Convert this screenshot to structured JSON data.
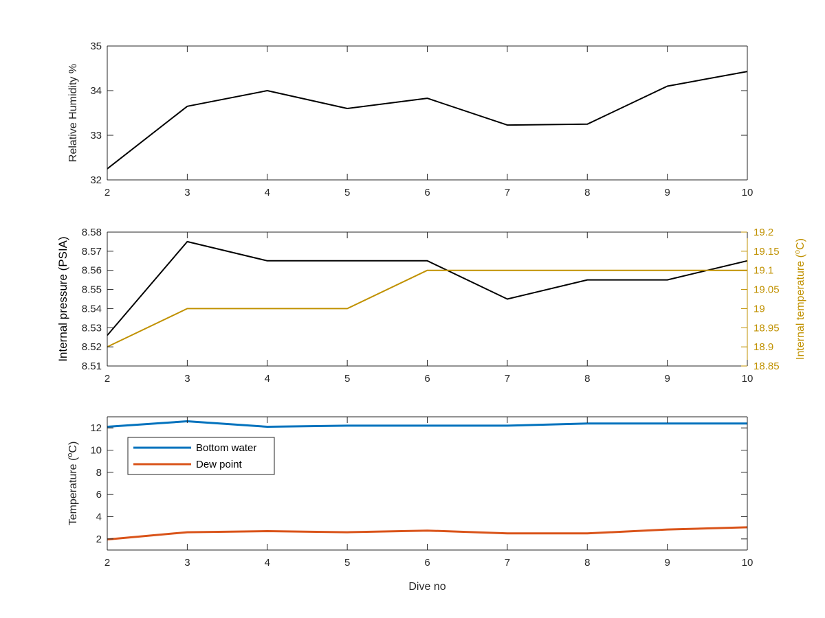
{
  "chart_data": [
    {
      "type": "line",
      "x": [
        2,
        3,
        4,
        5,
        6,
        7,
        8,
        9,
        10
      ],
      "series": [
        {
          "values": [
            32.25,
            33.65,
            34.0,
            33.6,
            33.83,
            33.23,
            33.25,
            34.1,
            34.43
          ],
          "color": "#000000"
        }
      ],
      "xlabel": "",
      "ylabel": "Relative Humidity %",
      "xlim": [
        2,
        10
      ],
      "ylim": [
        32,
        35
      ],
      "xticks": [
        "2",
        "3",
        "4",
        "5",
        "6",
        "7",
        "8",
        "9",
        "10"
      ],
      "yticks": [
        "32",
        "33",
        "34",
        "35"
      ],
      "grid": false
    },
    {
      "type": "line",
      "x": [
        2,
        3,
        4,
        5,
        6,
        7,
        8,
        9,
        10
      ],
      "series": [
        {
          "values": [
            8.526,
            8.575,
            8.565,
            8.565,
            8.565,
            8.545,
            8.555,
            8.555,
            8.565
          ],
          "color": "#000000",
          "axis": "left"
        },
        {
          "values": [
            18.9,
            19.0,
            19.0,
            19.0,
            19.1,
            19.1,
            19.1,
            19.1,
            19.1
          ],
          "color": "#C09100",
          "axis": "right"
        }
      ],
      "xlabel": "",
      "ylabel": "Internal pressure (PSIA)",
      "ylabel_right": "Internal temperature (°C)",
      "xlim": [
        2,
        10
      ],
      "ylim": [
        8.51,
        8.58
      ],
      "ylim_right": [
        18.85,
        19.2
      ],
      "xticks": [
        "2",
        "3",
        "4",
        "5",
        "6",
        "7",
        "8",
        "9",
        "10"
      ],
      "yticks": [
        "8.51",
        "8.52",
        "8.53",
        "8.54",
        "8.55",
        "8.56",
        "8.57",
        "8.58"
      ],
      "yticks_right": [
        "18.85",
        "18.9",
        "18.95",
        "19",
        "19.05",
        "19.1",
        "19.15",
        "19.2"
      ],
      "grid": false
    },
    {
      "type": "line",
      "x": [
        2,
        3,
        4,
        5,
        6,
        7,
        8,
        9,
        10
      ],
      "series": [
        {
          "name": "Bottom water",
          "values": [
            12.1,
            12.6,
            12.1,
            12.2,
            12.2,
            12.2,
            12.4,
            12.4,
            12.4
          ],
          "color": "#0072BD"
        },
        {
          "name": "Dew point",
          "values": [
            1.95,
            2.6,
            2.7,
            2.6,
            2.75,
            2.5,
            2.5,
            2.85,
            3.05
          ],
          "color": "#D95319"
        }
      ],
      "xlabel": "Dive no",
      "ylabel": "Temperature (°C)",
      "xlim": [
        2,
        10
      ],
      "ylim": [
        1,
        13
      ],
      "xticks": [
        "2",
        "3",
        "4",
        "5",
        "6",
        "7",
        "8",
        "9",
        "10"
      ],
      "yticks": [
        "2",
        "4",
        "6",
        "8",
        "10",
        "12"
      ],
      "legend": "top-left",
      "grid": false
    }
  ]
}
